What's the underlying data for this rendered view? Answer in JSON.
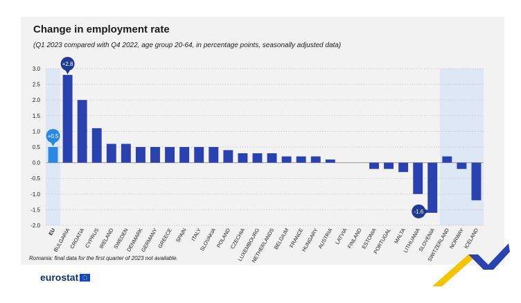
{
  "title": "Change in employment rate",
  "subtitle": "(Q1 2023 compared with Q4 2022, age group 20-64, in percentage points, seasonally adjusted data)",
  "footnote": "Romania: final data for the first quarter of 2023 not available.",
  "logo_text": "eurostat",
  "colors": {
    "eu_bar": "#2b88e2",
    "country_bar": "#2a41b0",
    "highlight_band": "#dde7f6",
    "callout_dark": "#1f3a93",
    "callout_eu": "#2b88e2"
  },
  "chart_data": {
    "type": "bar",
    "categories": [
      "EU",
      "Bulgaria",
      "Croatia",
      "Cyprus",
      "Ireland",
      "Sweden",
      "Denmark",
      "Germany",
      "Greece",
      "Spain",
      "Italy",
      "Slovakia",
      "Poland",
      "Czechia",
      "Luxembourg",
      "Netherlands",
      "Belgium",
      "France",
      "Hungary",
      "Austria",
      "Latvia",
      "Finland",
      "Estonia",
      "Portugal",
      "Malta",
      "Lithuania",
      "Slovenia",
      "Switzerland",
      "Norway",
      "Iceland"
    ],
    "values": [
      0.5,
      2.8,
      2.0,
      1.1,
      0.6,
      0.6,
      0.5,
      0.5,
      0.5,
      0.5,
      0.5,
      0.5,
      0.4,
      0.3,
      0.3,
      0.3,
      0.2,
      0.2,
      0.2,
      0.1,
      0.0,
      0.0,
      -0.2,
      -0.2,
      -0.3,
      -1.0,
      -1.6,
      0.2,
      -0.2,
      -1.2
    ],
    "ylim": [
      -2.0,
      3.0
    ],
    "yticks": [
      "3.0",
      "2.5",
      "2.0",
      "1.5",
      "1.0",
      "0.5",
      "0.0",
      "-0.5",
      "-1.0",
      "-1.5",
      "-2.0"
    ],
    "callouts": [
      {
        "category": "EU",
        "label": "+0.5"
      },
      {
        "category": "Bulgaria",
        "label": "+2.8"
      },
      {
        "category": "Slovenia",
        "label": "-1.6"
      }
    ],
    "highlighted_groups": [
      [
        "EU"
      ],
      [
        "Switzerland",
        "Norway",
        "Iceland"
      ]
    ],
    "grid": "horizontal dotted",
    "xlabel": "",
    "ylabel": ""
  }
}
